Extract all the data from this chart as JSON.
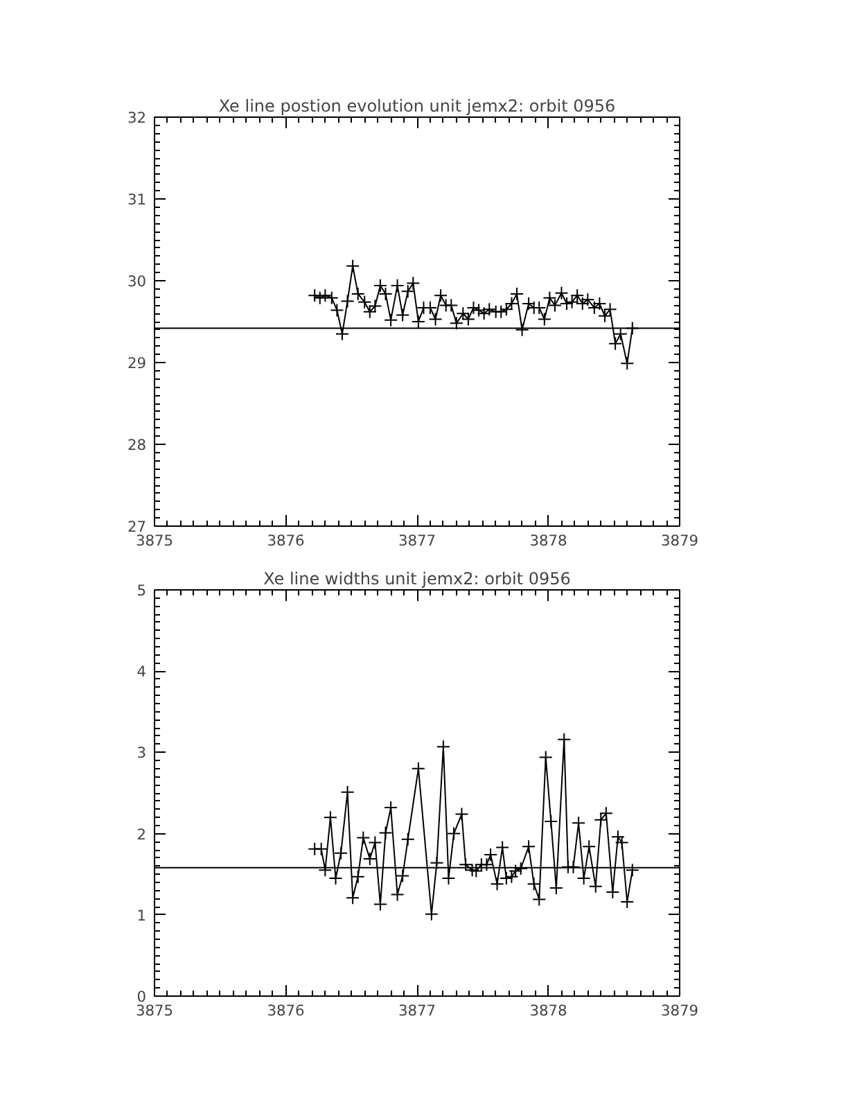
{
  "chart_data": [
    {
      "type": "line",
      "title": "Xe line postion evolution unit jemx2: orbit 0956",
      "marker": "cross",
      "line_style": "solid",
      "x": [
        3876.22,
        3876.26,
        3876.3,
        3876.35,
        3876.39,
        3876.43,
        3876.47,
        3876.51,
        3876.55,
        3876.6,
        3876.64,
        3876.68,
        3876.72,
        3876.76,
        3876.8,
        3876.85,
        3876.89,
        3876.93,
        3876.97,
        3877.01,
        3877.05,
        3877.1,
        3877.14,
        3877.18,
        3877.22,
        3877.26,
        3877.3,
        3877.35,
        3877.39,
        3877.43,
        3877.47,
        3877.51,
        3877.55,
        3877.6,
        3877.64,
        3877.68,
        3877.72,
        3877.76,
        3877.8,
        3877.85,
        3877.89,
        3877.93,
        3877.97,
        3878.01,
        3878.05,
        3878.1,
        3878.14,
        3878.18,
        3878.22,
        3878.26,
        3878.3,
        3878.35,
        3878.39,
        3878.43,
        3878.47,
        3878.51,
        3878.55,
        3878.6,
        3878.64
      ],
      "series": [
        {
          "color": "#000000",
          "values": [
            29.82,
            29.79,
            29.82,
            29.79,
            29.64,
            29.35,
            29.75,
            30.18,
            29.84,
            29.74,
            29.62,
            29.69,
            29.94,
            29.84,
            29.52,
            29.94,
            29.58,
            29.87,
            29.97,
            29.5,
            29.67,
            29.67,
            29.53,
            29.82,
            29.7,
            29.7,
            29.48,
            29.6,
            29.53,
            29.67,
            29.64,
            29.6,
            29.65,
            29.62,
            29.62,
            29.65,
            29.72,
            29.84,
            29.4,
            29.72,
            29.67,
            29.67,
            29.53,
            29.79,
            29.7,
            29.85,
            29.72,
            29.74,
            29.82,
            29.72,
            29.77,
            29.67,
            29.72,
            29.57,
            29.65,
            29.23,
            29.35,
            28.99,
            29.42
          ]
        }
      ],
      "ref_lines": [
        {
          "axis": "y",
          "value": 29.42,
          "color": "#000000"
        }
      ],
      "xlim": [
        3875,
        3879
      ],
      "xticks": [
        3875,
        3876,
        3877,
        3878,
        3879
      ],
      "ylim": [
        27,
        32
      ],
      "yticks": [
        27,
        28,
        29,
        30,
        31,
        32
      ]
    },
    {
      "type": "line",
      "title": "Xe line widths unit jemx2: orbit 0956",
      "marker": "cross",
      "line_style": "solid",
      "x": [
        3876.22,
        3876.27,
        3876.3,
        3876.34,
        3876.38,
        3876.42,
        3876.47,
        3876.51,
        3876.55,
        3876.59,
        3876.64,
        3876.68,
        3876.72,
        3876.76,
        3876.8,
        3876.85,
        3876.89,
        3876.93,
        3877.01,
        3877.11,
        3877.15,
        3877.2,
        3877.24,
        3877.28,
        3877.34,
        3877.37,
        3877.42,
        3877.45,
        3877.49,
        3877.53,
        3877.56,
        3877.61,
        3877.65,
        3877.68,
        3877.72,
        3877.75,
        3877.79,
        3877.85,
        3877.89,
        3877.93,
        3877.98,
        3878.02,
        3878.06,
        3878.12,
        3878.15,
        3878.19,
        3878.23,
        3878.27,
        3878.31,
        3878.36,
        3878.4,
        3878.44,
        3878.49,
        3878.53,
        3878.56,
        3878.6,
        3878.64
      ],
      "series": [
        {
          "color": "#000000",
          "values": [
            1.81,
            1.81,
            1.55,
            2.2,
            1.45,
            1.76,
            2.51,
            1.21,
            1.47,
            1.95,
            1.69,
            1.89,
            1.13,
            2.01,
            2.32,
            1.25,
            1.48,
            1.93,
            2.8,
            1.01,
            1.64,
            3.07,
            1.45,
            2.0,
            2.24,
            1.62,
            1.55,
            1.54,
            1.62,
            1.62,
            1.74,
            1.38,
            1.83,
            1.45,
            1.47,
            1.54,
            1.57,
            1.84,
            1.38,
            1.19,
            2.94,
            2.15,
            1.33,
            3.16,
            1.59,
            1.59,
            2.13,
            1.45,
            1.84,
            1.35,
            2.17,
            2.25,
            1.28,
            1.96,
            1.89,
            1.16,
            1.55
          ]
        }
      ],
      "ref_lines": [
        {
          "axis": "y",
          "value": 1.58,
          "color": "#000000"
        }
      ],
      "xlim": [
        3875,
        3879
      ],
      "xticks": [
        3875,
        3876,
        3877,
        3878,
        3879
      ],
      "ylim": [
        0,
        5
      ],
      "yticks": [
        0,
        1,
        2,
        3,
        4,
        5
      ]
    }
  ]
}
